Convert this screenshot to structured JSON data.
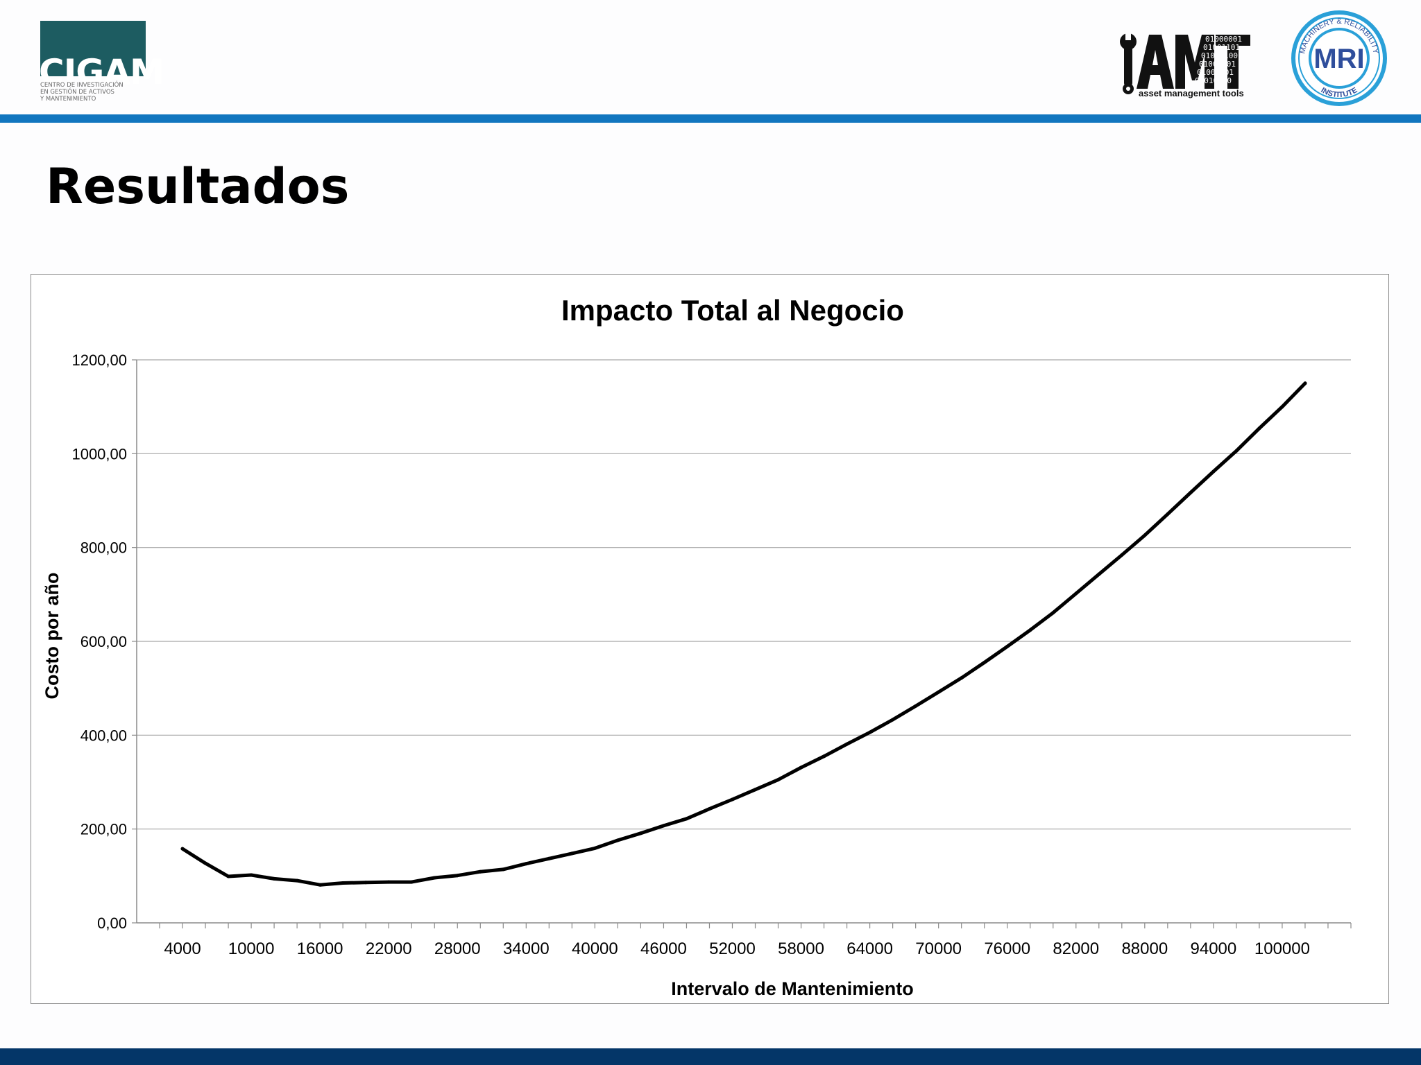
{
  "header": {
    "cigam_logo": {
      "name": "CIGAM",
      "subtitle": "CENTRO DE INVESTIGACIÓN\nEN GESTIÓN DE ACTIVOS\nY MANTENIMIENTO"
    },
    "amt_logo": {
      "name": "AMT",
      "tagline": "asset management tools",
      "binary": [
        "01000001",
        "01001101",
        "01010100",
        "01000001",
        "01001101",
        "01010100"
      ]
    },
    "mri_logo": {
      "name": "MRI",
      "ring_top": "MACHINERY & RELIABILITY",
      "ring_bottom": "INSTITUTE"
    },
    "colors": {
      "rule": "#1276bf",
      "footer": "#043668",
      "cigam_teal": "#1d5c61",
      "mri_blue": "#2f4e9c",
      "mri_ring": "#2aa0d8"
    }
  },
  "slide": {
    "title": "Resultados"
  },
  "chart_data": {
    "type": "line",
    "title": "Impacto Total al Negocio",
    "xlabel": "Intervalo de Mantenimiento",
    "ylabel": "Costo por año",
    "ylim": [
      0,
      1200
    ],
    "yticks": [
      "0,00",
      "200,00",
      "400,00",
      "600,00",
      "800,00",
      "1000,00",
      "1200,00"
    ],
    "x_tick_labels": [
      "4000",
      "10000",
      "16000",
      "22000",
      "28000",
      "34000",
      "40000",
      "46000",
      "52000",
      "58000",
      "64000",
      "70000",
      "76000",
      "82000",
      "88000",
      "94000",
      "100000"
    ],
    "grid": true,
    "legend": "none",
    "line_color": "#000000",
    "series": [
      {
        "x": [
          4000,
          6000,
          8000,
          10000,
          12000,
          14000,
          16000,
          18000,
          20000,
          22000,
          24000,
          26000,
          28000,
          30000,
          32000,
          34000,
          36000,
          38000,
          40000,
          42000,
          44000,
          46000,
          48000,
          50000,
          52000,
          54000,
          56000,
          58000,
          60000,
          62000,
          64000,
          66000,
          68000,
          70000,
          72000,
          74000,
          76000,
          78000,
          80000,
          82000,
          84000,
          86000,
          88000,
          90000,
          92000,
          94000,
          96000,
          98000,
          100000,
          102000
        ],
        "values": [
          158,
          127,
          99,
          102,
          94,
          90,
          81,
          85,
          86,
          87,
          87,
          96,
          101,
          109,
          114,
          126,
          137,
          148,
          159,
          176,
          191,
          207,
          222,
          243,
          263,
          284,
          305,
          331,
          355,
          381,
          406,
          433,
          462,
          492,
          522,
          555,
          589,
          624,
          661,
          702,
          743,
          784,
          826,
          871,
          917,
          962,
          1006,
          1054,
          1100,
          1150
        ]
      }
    ]
  }
}
